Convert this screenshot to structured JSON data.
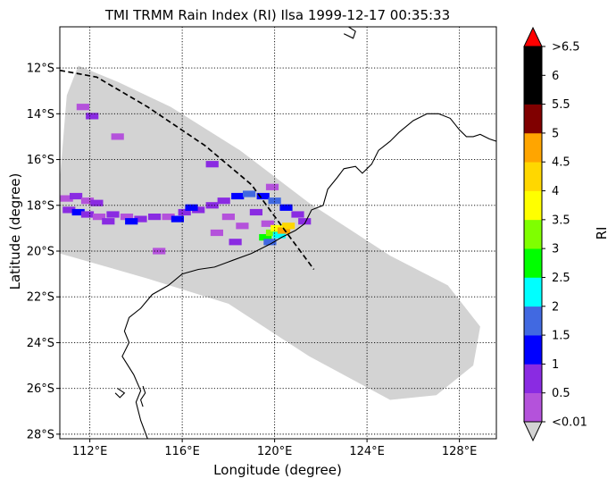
{
  "chart_data": {
    "type": "heatmap",
    "title": "TMI TRMM Rain Index (RI) Ilsa 1999-12-17 00:35:33",
    "xlabel": "Longitude (degree)",
    "ylabel": "Latitude (degree)",
    "xlim": [
      110.7,
      129.6
    ],
    "ylim": [
      -28.2,
      -10.2
    ],
    "x_ticks": [
      112,
      116,
      120,
      124,
      128
    ],
    "x_tick_labels": [
      "112°E",
      "116°E",
      "120°E",
      "124°E",
      "128°E"
    ],
    "y_ticks": [
      -12,
      -14,
      -16,
      -18,
      -20,
      -22,
      -24,
      -26,
      -28
    ],
    "y_tick_labels": [
      "12°S",
      "14°S",
      "16°S",
      "18°S",
      "20°S",
      "22°S",
      "24°S",
      "26°S",
      "28°S"
    ],
    "grid": "dotted",
    "swath_color": "#d3d3d3",
    "swath_outline": [
      [
        111.5,
        -11.9
      ],
      [
        113.2,
        -12.6
      ],
      [
        115.5,
        -13.7
      ],
      [
        118.5,
        -15.6
      ],
      [
        121.5,
        -17.9
      ],
      [
        125.0,
        -20.2
      ],
      [
        127.5,
        -21.5
      ],
      [
        128.9,
        -23.3
      ],
      [
        128.6,
        -25.0
      ],
      [
        127.0,
        -26.3
      ],
      [
        125.0,
        -26.5
      ],
      [
        121.5,
        -24.6
      ],
      [
        118.0,
        -22.3
      ],
      [
        114.5,
        -21.2
      ],
      [
        110.7,
        -20.1
      ],
      [
        110.7,
        -16.9
      ],
      [
        111.0,
        -13.2
      ]
    ],
    "track": [
      [
        110.7,
        -12.1
      ],
      [
        112.3,
        -12.4
      ],
      [
        114.5,
        -13.7
      ],
      [
        117.0,
        -15.4
      ],
      [
        119.0,
        -17.1
      ],
      [
        120.3,
        -18.9
      ],
      [
        121.7,
        -20.8
      ]
    ],
    "coastline": [
      [
        [
          119.8,
          -19.7
        ],
        [
          120.3,
          -19.4
        ],
        [
          120.9,
          -19.1
        ],
        [
          121.3,
          -18.8
        ],
        [
          121.6,
          -18.2
        ],
        [
          122.1,
          -18.0
        ],
        [
          122.3,
          -17.3
        ],
        [
          122.7,
          -16.8
        ],
        [
          123.0,
          -16.4
        ],
        [
          123.5,
          -16.3
        ],
        [
          123.8,
          -16.6
        ],
        [
          124.2,
          -16.2
        ],
        [
          124.5,
          -15.6
        ],
        [
          125.0,
          -15.2
        ],
        [
          125.4,
          -14.8
        ],
        [
          126.0,
          -14.3
        ],
        [
          126.6,
          -14.0
        ],
        [
          127.1,
          -14.0
        ],
        [
          127.6,
          -14.2
        ],
        [
          128.0,
          -14.7
        ],
        [
          128.3,
          -15.0
        ],
        [
          128.6,
          -15.0
        ],
        [
          128.9,
          -14.9
        ],
        [
          129.3,
          -15.1
        ],
        [
          129.6,
          -15.2
        ]
      ],
      [
        [
          119.8,
          -19.7
        ],
        [
          119.0,
          -20.1
        ],
        [
          118.2,
          -20.4
        ],
        [
          117.4,
          -20.7
        ],
        [
          116.7,
          -20.8
        ],
        [
          116.0,
          -21.0
        ],
        [
          115.4,
          -21.5
        ],
        [
          114.7,
          -21.9
        ],
        [
          114.2,
          -22.5
        ],
        [
          113.7,
          -22.9
        ],
        [
          113.5,
          -23.5
        ],
        [
          113.7,
          -24.0
        ],
        [
          113.4,
          -24.6
        ],
        [
          113.9,
          -25.4
        ],
        [
          114.2,
          -26.1
        ],
        [
          114.0,
          -26.6
        ],
        [
          114.2,
          -27.4
        ],
        [
          114.5,
          -28.2
        ]
      ]
    ],
    "islands": [
      [
        [
          123.2,
          -10.2
        ],
        [
          123.5,
          -10.4
        ],
        [
          123.4,
          -10.7
        ],
        [
          123.0,
          -10.5
        ]
      ],
      [
        [
          114.3,
          -25.9
        ],
        [
          114.4,
          -26.2
        ],
        [
          114.2,
          -26.5
        ],
        [
          114.3,
          -26.8
        ]
      ],
      [
        [
          113.2,
          -26.0
        ],
        [
          113.5,
          -26.2
        ],
        [
          113.3,
          -26.4
        ],
        [
          113.1,
          -26.2
        ]
      ]
    ],
    "rain_cells": [
      {
        "lon": 111.0,
        "lat": -17.7,
        "ri": 0.3
      },
      {
        "lon": 111.4,
        "lat": -17.6,
        "ri": 0.7
      },
      {
        "lon": 111.9,
        "lat": -17.8,
        "ri": 0.4
      },
      {
        "lon": 112.3,
        "lat": -17.9,
        "ri": 0.6
      },
      {
        "lon": 111.1,
        "lat": -18.2,
        "ri": 0.5
      },
      {
        "lon": 111.5,
        "lat": -18.3,
        "ri": 1.2
      },
      {
        "lon": 111.9,
        "lat": -18.4,
        "ri": 0.8
      },
      {
        "lon": 112.4,
        "lat": -18.5,
        "ri": 0.4
      },
      {
        "lon": 113.0,
        "lat": -18.4,
        "ri": 0.6
      },
      {
        "lon": 113.6,
        "lat": -18.5,
        "ri": 0.3
      },
      {
        "lon": 114.2,
        "lat": -18.6,
        "ri": 0.5
      },
      {
        "lon": 114.8,
        "lat": -18.5,
        "ri": 0.7
      },
      {
        "lon": 115.4,
        "lat": -18.5,
        "ri": 0.4
      },
      {
        "lon": 116.1,
        "lat": -18.3,
        "ri": 0.6
      },
      {
        "lon": 116.7,
        "lat": -18.2,
        "ri": 0.9
      },
      {
        "lon": 117.3,
        "lat": -18.0,
        "ri": 0.5
      },
      {
        "lon": 117.8,
        "lat": -17.8,
        "ri": 0.7
      },
      {
        "lon": 118.4,
        "lat": -17.6,
        "ri": 1.3
      },
      {
        "lon": 118.9,
        "lat": -17.5,
        "ri": 1.7
      },
      {
        "lon": 119.5,
        "lat": -17.6,
        "ri": 1.4
      },
      {
        "lon": 120.0,
        "lat": -17.8,
        "ri": 1.8
      },
      {
        "lon": 120.5,
        "lat": -18.1,
        "ri": 1.2
      },
      {
        "lon": 121.0,
        "lat": -18.4,
        "ri": 0.8
      },
      {
        "lon": 121.3,
        "lat": -18.7,
        "ri": 0.5
      },
      {
        "lon": 116.4,
        "lat": -18.1,
        "ri": 1.2
      },
      {
        "lon": 115.8,
        "lat": -18.6,
        "ri": 1.1
      },
      {
        "lon": 113.8,
        "lat": -18.7,
        "ri": 1.1
      },
      {
        "lon": 112.8,
        "lat": -18.7,
        "ri": 0.5
      },
      {
        "lon": 118.0,
        "lat": -18.5,
        "ri": 0.4
      },
      {
        "lon": 118.6,
        "lat": -18.9,
        "ri": 0.3
      },
      {
        "lon": 119.2,
        "lat": -18.3,
        "ri": 0.6
      },
      {
        "lon": 119.7,
        "lat": -18.8,
        "ri": 0.4
      },
      {
        "lon": 117.5,
        "lat": -19.2,
        "ri": 0.3
      },
      {
        "lon": 118.3,
        "lat": -19.6,
        "ri": 0.5
      },
      {
        "lon": 119.6,
        "lat": -19.4,
        "ri": 2.6
      },
      {
        "lon": 119.9,
        "lat": -19.2,
        "ri": 3.2
      },
      {
        "lon": 120.1,
        "lat": -19.0,
        "ri": 3.7
      },
      {
        "lon": 120.2,
        "lat": -19.3,
        "ri": 2.1
      },
      {
        "lon": 119.8,
        "lat": -19.6,
        "ri": 1.6
      },
      {
        "lon": 120.4,
        "lat": -19.1,
        "ri": 4.7
      },
      {
        "lon": 120.6,
        "lat": -18.9,
        "ri": 4.2
      },
      {
        "lon": 115.0,
        "lat": -20.0,
        "ri": 0.4
      },
      {
        "lon": 112.1,
        "lat": -14.1,
        "ri": 0.6
      },
      {
        "lon": 111.7,
        "lat": -13.7,
        "ri": 0.4
      },
      {
        "lon": 113.2,
        "lat": -15.0,
        "ri": 0.3
      },
      {
        "lon": 117.3,
        "lat": -16.2,
        "ri": 0.5
      },
      {
        "lon": 119.9,
        "lat": -17.2,
        "ri": 0.4
      }
    ],
    "colorbar": {
      "label": "RI",
      "boundaries": [
        0.01,
        0.5,
        1,
        1.5,
        2,
        2.5,
        3,
        3.5,
        4,
        4.5,
        5,
        5.5,
        6,
        6.5
      ],
      "colors": [
        "#b452db",
        "#8a2be2",
        "#0000ff",
        "#4169e1",
        "#00ffff",
        "#00ff00",
        "#7fff00",
        "#ffff00",
        "#ffd700",
        "#ffa500",
        "#800000",
        "#000000",
        "#000000"
      ],
      "under_color": "#d3d3d3",
      "over_color": "#ff0000",
      "tick_labels": [
        "<0.01",
        "0.5",
        "1",
        "1.5",
        "2",
        "2.5",
        "3",
        "3.5",
        "4",
        "4.5",
        "5",
        "5.5",
        "6",
        ">6.5"
      ]
    }
  }
}
